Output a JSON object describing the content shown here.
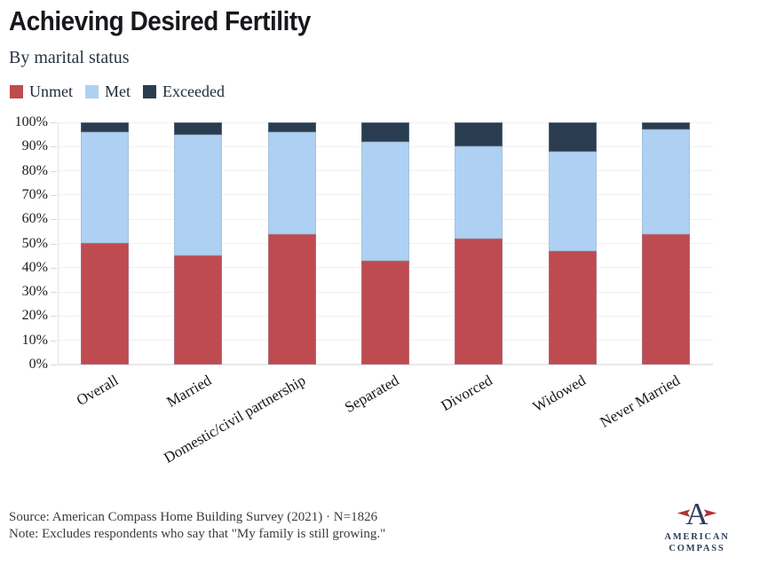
{
  "header": {
    "title": "Achieving Desired Fertility",
    "subtitle": "By marital status"
  },
  "chart_data": {
    "type": "bar",
    "stacked": true,
    "title": "Achieving Desired Fertility",
    "subtitle": "By marital status",
    "categories": [
      "Overall",
      "Married",
      "Domestic/civil partnership",
      "Separated",
      "Divorced",
      "Widowed",
      "Never Married"
    ],
    "series": [
      {
        "name": "Unmet",
        "color": "#be4b50",
        "values": [
          50,
          45,
          54,
          43,
          52,
          47,
          54
        ]
      },
      {
        "name": "Met",
        "color": "#aed0f2",
        "values": [
          46,
          50,
          42,
          49,
          38,
          41,
          43
        ]
      },
      {
        "name": "Exceeded",
        "color": "#2a3c50",
        "values": [
          4,
          5,
          4,
          8,
          10,
          12,
          3
        ]
      }
    ],
    "y_ticks": [
      "0%",
      "10%",
      "20%",
      "30%",
      "40%",
      "50%",
      "60%",
      "70%",
      "80%",
      "90%",
      "100%"
    ],
    "ylim": [
      0,
      100
    ],
    "grid": true,
    "legend_position": "top-left",
    "unit": "percent"
  },
  "footer": {
    "source": "Source: American Compass Home Building Survey (2021) · N=1826",
    "note": "Note: Excludes respondents who say that \"My family is still growing.\""
  },
  "logo": {
    "line1": "AMERICAN",
    "line2": "COMPASS",
    "icon": "compass-a-icon",
    "navy": "#2c3e5a",
    "red": "#ab3431"
  },
  "colors": {
    "background": "#ffffff",
    "gridline": "#f0f0f0",
    "axis_line": "#e3e3e3",
    "text_dark": "#16181b",
    "footer_text": "#3c3c3c"
  }
}
